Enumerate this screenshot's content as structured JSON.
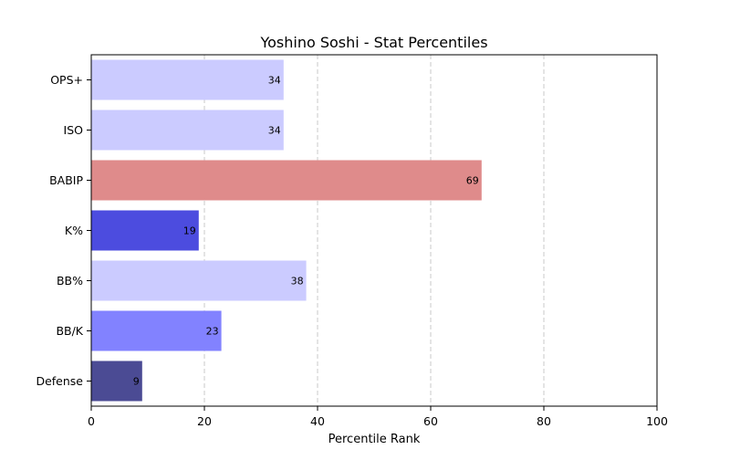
{
  "chart_data": {
    "type": "bar",
    "orientation": "horizontal",
    "title": "Yoshino Soshi - Stat Percentiles",
    "xlabel": "Percentile Rank",
    "ylabel": "",
    "xlim": [
      0,
      100
    ],
    "x_ticks": [
      0,
      20,
      40,
      60,
      80,
      100
    ],
    "grid": "vertical-dashed",
    "categories": [
      "OPS+",
      "ISO",
      "BABIP",
      "K%",
      "BB%",
      "BB/K",
      "Defense"
    ],
    "values": [
      34,
      34,
      69,
      19,
      38,
      23,
      9
    ],
    "colors": [
      "#cbcbff",
      "#cbcbff",
      "#df8b8b",
      "#4c4cdf",
      "#cbcbff",
      "#8282ff",
      "#4b4b94"
    ]
  }
}
